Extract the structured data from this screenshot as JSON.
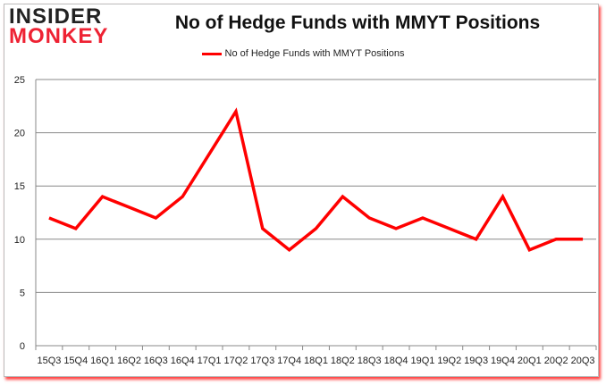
{
  "logo": {
    "line1": "INSIDER",
    "line2": "MONKEY"
  },
  "chart_data": {
    "type": "line",
    "title": "No of Hedge Funds with MMYT Positions",
    "legend_position": "top",
    "grid": true,
    "ylim": [
      0,
      25
    ],
    "yticks": [
      0,
      5,
      10,
      15,
      20,
      25
    ],
    "categories": [
      "15Q3",
      "15Q4",
      "16Q1",
      "16Q2",
      "16Q3",
      "16Q4",
      "17Q1",
      "17Q2",
      "17Q3",
      "17Q4",
      "18Q1",
      "18Q2",
      "18Q3",
      "18Q4",
      "19Q1",
      "19Q2",
      "19Q3",
      "19Q4",
      "20Q1",
      "20Q2",
      "20Q3"
    ],
    "series": [
      {
        "name": "No of Hedge Funds with MMYT Positions",
        "color": "#ff0000",
        "values": [
          12,
          11,
          14,
          13,
          12,
          14,
          18,
          22,
          11,
          9,
          11,
          14,
          12,
          11,
          12,
          11,
          10,
          14,
          9,
          10,
          10
        ]
      }
    ]
  }
}
